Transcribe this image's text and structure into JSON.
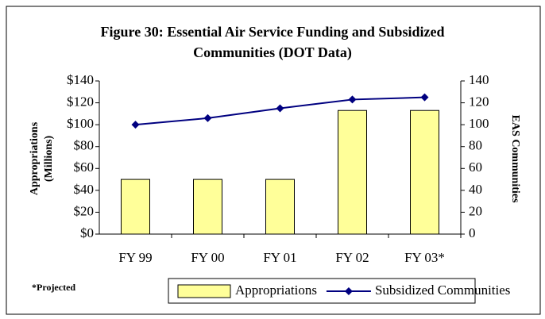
{
  "chart_data": {
    "type": "bar",
    "title": [
      "Figure 30:  Essential Air Service Funding and Subsidized",
      "Communities (DOT Data)"
    ],
    "y_label": [
      "Appropriations",
      "(Millions)"
    ],
    "y2_label": "EAS Communities",
    "note": "*Projected",
    "categories": [
      "FY 99",
      "FY 00",
      "FY 01",
      "FY 02",
      "FY 03*"
    ],
    "series": [
      {
        "name": "Appropriations",
        "type": "bar",
        "color": "#ffff99",
        "axis": "y",
        "values": [
          50,
          50,
          50,
          113,
          113
        ]
      },
      {
        "name": "Subsidized Communities",
        "type": "line",
        "color": "#000080",
        "axis": "y2",
        "values": [
          100,
          106,
          115,
          123,
          125
        ]
      }
    ],
    "ylim": [
      0,
      140
    ],
    "yticks": [
      {
        "value": 0,
        "label": "$0"
      },
      {
        "value": 20,
        "label": "$20"
      },
      {
        "value": 40,
        "label": "$40"
      },
      {
        "value": 60,
        "label": "$60"
      },
      {
        "value": 80,
        "label": "$80"
      },
      {
        "value": 100,
        "label": "$100"
      },
      {
        "value": 120,
        "label": "$120"
      },
      {
        "value": 140,
        "label": "$140"
      }
    ],
    "y2lim": [
      0,
      140
    ],
    "y2ticks": [
      0,
      20,
      40,
      60,
      80,
      100,
      120,
      140
    ],
    "grid": false
  }
}
